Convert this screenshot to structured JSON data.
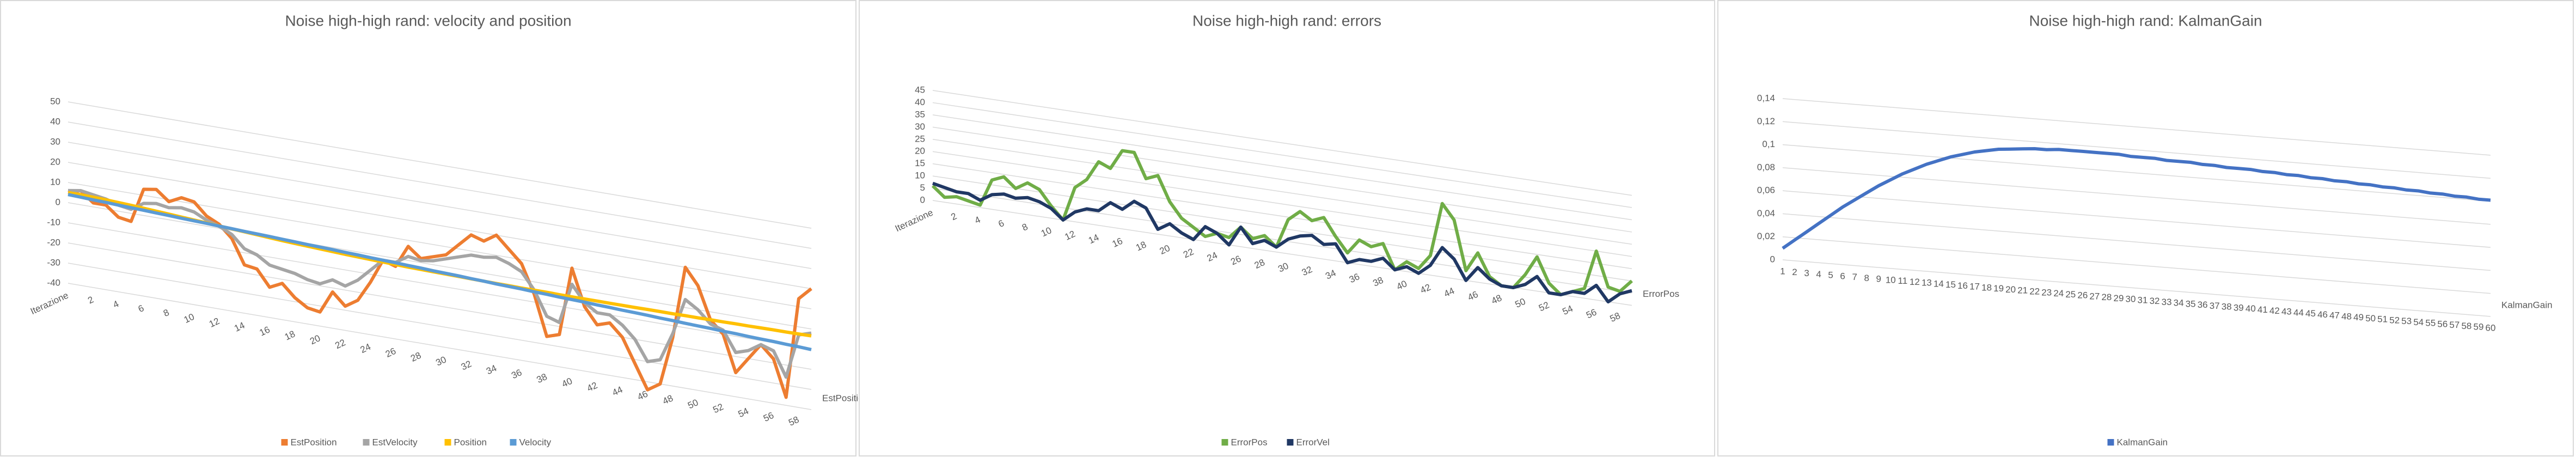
{
  "chart_data": [
    {
      "type": "line",
      "title": "Noise high-high rand: velocity and position",
      "depth_label": "EstPosition",
      "categories": [
        "Iterazione",
        null,
        "2",
        null,
        "4",
        null,
        "6",
        null,
        "8",
        null,
        "10",
        null,
        "12",
        null,
        "14",
        null,
        "16",
        null,
        "18",
        null,
        "20",
        null,
        "22",
        null,
        "24",
        null,
        "26",
        null,
        "28",
        null,
        "30",
        null,
        "32",
        null,
        "34",
        null,
        "36",
        null,
        "38",
        null,
        "40",
        null,
        "42",
        null,
        "44",
        null,
        "46",
        null,
        "48",
        null,
        "50",
        null,
        "52",
        null,
        "54",
        null,
        "56",
        null,
        "58",
        null
      ],
      "ylim": [
        -40,
        50
      ],
      "yticks": [
        -40,
        -30,
        -20,
        -10,
        0,
        10,
        20,
        30,
        40,
        50
      ],
      "grid": true,
      "legend": "bottom",
      "series": [
        {
          "name": "EstPosition",
          "color": "#ED7D31",
          "values": [
            5,
            7,
            2,
            2,
            -3,
            -4,
            13,
            14,
            9,
            12,
            11,
            5,
            2,
            -4,
            -16,
            -17,
            -25,
            -22,
            -28,
            -32,
            -33,
            -22,
            -28,
            -24,
            -14,
            -2,
            -4,
            7,
            2,
            4,
            6,
            12,
            18,
            16,
            20,
            14,
            8,
            -6,
            -26,
            -24,
            10,
            -8,
            -16,
            -14,
            -20,
            -32,
            -44,
            -40,
            -16,
            20,
            12,
            -4,
            -10,
            -28,
            -20,
            -12,
            -18,
            -36,
            14,
            20
          ]
        },
        {
          "name": "EstVelocity",
          "color": "#A5A5A5",
          "values": [
            6,
            7,
            6,
            5,
            3,
            2,
            6,
            7,
            6,
            7,
            6,
            3,
            1,
            -2,
            -8,
            -10,
            -14,
            -15,
            -16,
            -18,
            -19,
            -16,
            -18,
            -14,
            -8,
            -2,
            -2,
            2,
            1,
            2,
            4,
            6,
            8,
            8,
            9,
            7,
            4,
            -4,
            -16,
            -18,
            2,
            -6,
            -10,
            -10,
            -14,
            -20,
            -30,
            -28,
            -14,
            4,
            0,
            -6,
            -8,
            -18,
            -16,
            -12,
            -14,
            -26,
            -4,
            -2
          ]
        },
        {
          "name": "Position",
          "color": "#FFC000",
          "values": [
            5,
            5,
            4.8,
            4.6,
            4.3,
            4,
            3.6,
            3.2,
            2.8,
            2.4,
            2,
            1.6,
            1.2,
            0.8,
            0.4,
            0,
            -0.4,
            -0.8,
            -1.1,
            -1.4,
            -1.7,
            -2,
            -2.3,
            -2.5,
            -2.7,
            -2.9,
            -3.1,
            -3.3,
            -3.4,
            -3.5,
            -3.6,
            -3.7,
            -3.8,
            -3.9,
            -4,
            -4,
            -4.1,
            -4.1,
            -4.1,
            -4.2,
            -4.2,
            -4.2,
            -4.2,
            -4.2,
            -4.2,
            -4.2,
            -4.1,
            -4.1,
            -4.1,
            -4,
            -4,
            -3.9,
            -3.9,
            -3.8,
            -3.8,
            -3.7,
            -3.6,
            -3.6,
            -3.5,
            -3.4
          ]
        },
        {
          "name": "Velocity",
          "color": "#5B9BD5",
          "values": [
            4,
            3.8,
            3.5,
            3.3,
            3,
            2.8,
            2.6,
            2.3,
            2.1,
            1.8,
            1.6,
            1.4,
            1.1,
            0.9,
            0.6,
            0.4,
            0.2,
            -0.1,
            -0.3,
            -0.6,
            -0.8,
            -1,
            -1.3,
            -1.5,
            -1.8,
            -2,
            -2.2,
            -2.5,
            -2.7,
            -3,
            -3.2,
            -3.4,
            -3.7,
            -3.9,
            -4.2,
            -4.4,
            -4.6,
            -4.9,
            -5.1,
            -5.4,
            -5.6,
            -5.8,
            -6.1,
            -6.3,
            -6.6,
            -6.8,
            -7,
            -7.3,
            -7.5,
            -7.8,
            -8,
            -8.2,
            -8.5,
            -8.7,
            -9,
            -9.2,
            -9.4,
            -9.7,
            -9.9,
            -10.2
          ]
        }
      ]
    },
    {
      "type": "line",
      "title": "Noise high-high rand: errors",
      "depth_label": "ErrorPos",
      "categories": [
        "Iterazione",
        null,
        "2",
        null,
        "4",
        null,
        "6",
        null,
        "8",
        null,
        "10",
        null,
        "12",
        null,
        "14",
        null,
        "16",
        null,
        "18",
        null,
        "20",
        null,
        "22",
        null,
        "24",
        null,
        "26",
        null,
        "28",
        null,
        "30",
        null,
        "32",
        null,
        "34",
        null,
        "36",
        null,
        "38",
        null,
        "40",
        null,
        "42",
        null,
        "44",
        null,
        "46",
        null,
        "48",
        null,
        "50",
        null,
        "52",
        null,
        "54",
        null,
        "56",
        null,
        "58",
        null
      ],
      "ylim": [
        0,
        45
      ],
      "yticks": [
        0,
        5,
        10,
        15,
        20,
        25,
        30,
        35,
        40,
        45
      ],
      "grid": true,
      "legend": "bottom",
      "series": [
        {
          "name": "ErrorPos",
          "color": "#70AD47",
          "values": [
            6,
            2,
            3,
            2,
            1,
            12,
            14,
            10,
            13,
            11,
            5,
            0,
            14,
            18,
            26,
            24,
            32,
            32,
            22,
            24,
            14,
            8,
            5,
            2,
            4,
            3,
            8,
            4,
            6,
            2,
            14,
            18,
            15,
            17,
            10,
            4,
            10,
            8,
            10,
            0,
            4,
            2,
            8,
            30,
            24,
            4,
            12,
            3,
            0,
            0,
            6,
            14,
            4,
            0,
            2,
            4,
            20,
            6,
            5,
            10
          ]
        },
        {
          "name": "ErrorVel",
          "color": "#203864",
          "values": [
            7,
            6,
            5,
            5,
            3,
            6,
            7,
            6,
            7,
            6,
            4,
            0,
            4,
            6,
            6,
            10,
            8,
            12,
            10,
            2,
            5,
            2,
            0,
            6,
            4,
            0,
            8,
            2,
            4,
            2,
            6,
            8,
            9,
            6,
            7,
            0,
            2,
            2,
            4,
            0,
            2,
            0,
            4,
            12,
            8,
            0,
            6,
            2,
            0,
            0,
            2,
            6,
            0,
            0,
            2,
            2,
            6,
            0,
            4,
            6
          ]
        }
      ]
    },
    {
      "type": "line",
      "title": "Noise high-high rand: KalmanGain",
      "depth_label": "KalmanGain",
      "categories": [
        1,
        2,
        3,
        4,
        5,
        6,
        7,
        8,
        9,
        10,
        11,
        12,
        13,
        14,
        15,
        16,
        17,
        18,
        19,
        20,
        21,
        22,
        23,
        24,
        25,
        26,
        27,
        28,
        29,
        30,
        31,
        32,
        33,
        34,
        35,
        36,
        37,
        38,
        39,
        40,
        41,
        42,
        43,
        44,
        45,
        46,
        47,
        48,
        49,
        50,
        51,
        52,
        53,
        54,
        55,
        56,
        57,
        58,
        59,
        60
      ],
      "ylim": [
        0,
        0.14
      ],
      "yticks": [
        0,
        {
          "value": 0.02,
          "label": "0,02"
        },
        {
          "value": 0.04,
          "label": "0,04"
        },
        {
          "value": 0.06,
          "label": "0,06"
        },
        {
          "value": 0.08,
          "label": "0,08"
        },
        {
          "value": 0.1,
          "label": "0,1"
        },
        {
          "value": 0.12,
          "label": "0,12"
        },
        {
          "value": 0.14,
          "label": "0,14"
        }
      ],
      "grid": true,
      "legend": "bottom",
      "series": [
        {
          "name": "KalmanGain",
          "color": "#4472C4",
          "values": [
            0.01,
            0.018,
            0.026,
            0.034,
            0.042,
            0.05,
            0.057,
            0.064,
            0.071,
            0.077,
            0.083,
            0.088,
            0.093,
            0.097,
            0.101,
            0.104,
            0.107,
            0.109,
            0.111,
            0.112,
            0.113,
            0.114,
            0.114,
            0.115,
            0.115,
            0.115,
            0.115,
            0.115,
            0.115,
            0.114,
            0.114,
            0.114,
            0.113,
            0.113,
            0.113,
            0.112,
            0.112,
            0.111,
            0.111,
            0.111,
            0.11,
            0.11,
            0.109,
            0.109,
            0.108,
            0.108,
            0.107,
            0.107,
            0.106,
            0.106,
            0.105,
            0.105,
            0.104,
            0.104,
            0.103,
            0.103,
            0.102,
            0.102,
            0.101,
            0.101
          ]
        }
      ]
    }
  ]
}
